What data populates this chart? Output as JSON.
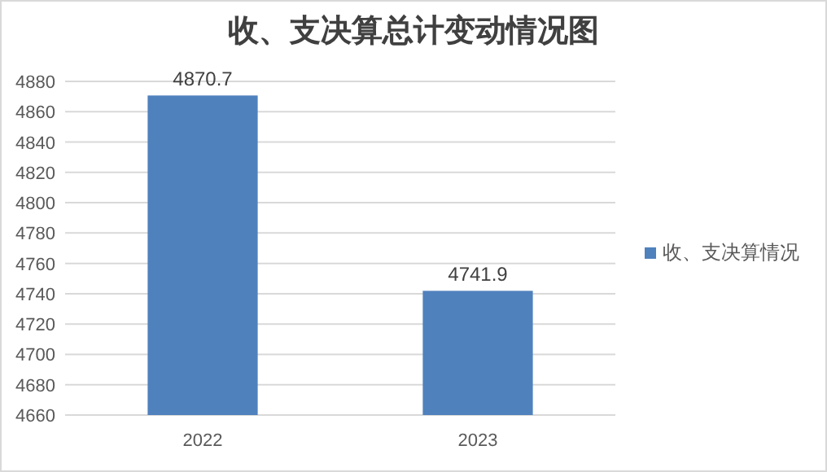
{
  "chart_data": {
    "type": "bar",
    "title": "收、支决算总计变动情况图",
    "categories": [
      "2022",
      "2023"
    ],
    "series": [
      {
        "name": "收、支决算情况",
        "color": "#4f81bd",
        "values": [
          4870.7,
          4741.9
        ]
      }
    ],
    "ylim": [
      4660,
      4880
    ],
    "yticks": [
      4660,
      4680,
      4700,
      4720,
      4740,
      4760,
      4780,
      4800,
      4820,
      4840,
      4860,
      4880
    ],
    "grid": "y",
    "legend": "right",
    "data_labels": true
  }
}
